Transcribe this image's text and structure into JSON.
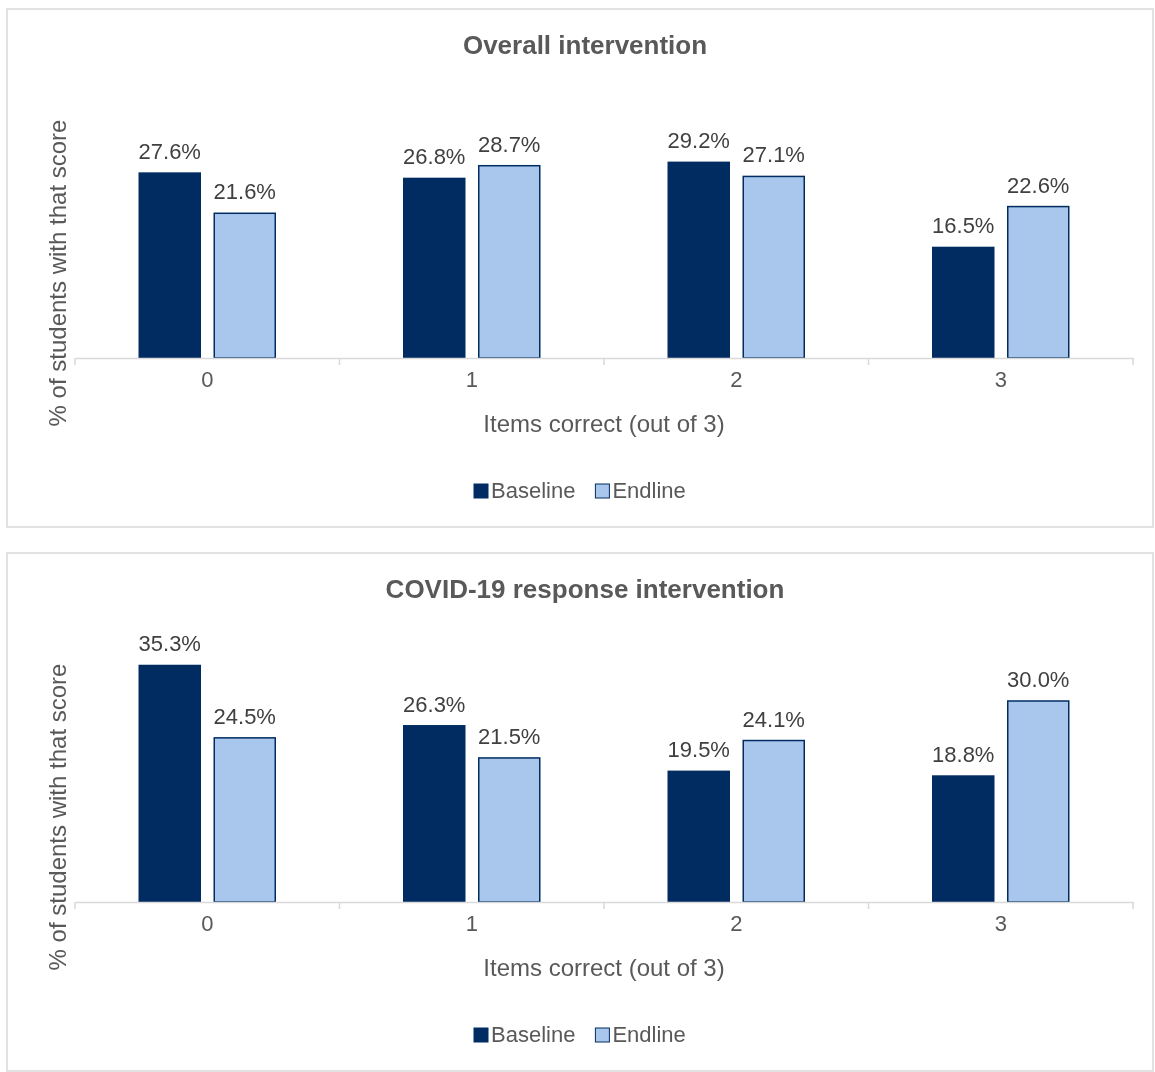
{
  "chart_data": [
    {
      "type": "bar",
      "title": "Overall intervention",
      "xlabel": "Items correct (out of 3)",
      "ylabel": "% of students with that score",
      "categories": [
        "0",
        "1",
        "2",
        "3"
      ],
      "series": [
        {
          "name": "Baseline",
          "color": "#002c62",
          "values": [
            27.6,
            26.8,
            29.2,
            16.5
          ],
          "value_labels": [
            "27.6%",
            "26.8%",
            "29.2%",
            "16.5%"
          ]
        },
        {
          "name": "Endline",
          "color": "#a9c7ec",
          "values": [
            21.6,
            28.7,
            27.1,
            22.6
          ],
          "value_labels": [
            "21.6%",
            "28.7%",
            "27.1%",
            "22.6%"
          ]
        }
      ],
      "legend": "bottom",
      "tick_labels": "x"
    },
    {
      "type": "bar",
      "title": "COVID-19 response intervention",
      "xlabel": "Items correct (out of 3)",
      "ylabel": "% of students with that score",
      "categories": [
        "0",
        "1",
        "2",
        "3"
      ],
      "series": [
        {
          "name": "Baseline",
          "color": "#002c62",
          "values": [
            35.3,
            26.3,
            19.5,
            18.8
          ],
          "value_labels": [
            "35.3%",
            "26.3%",
            "19.5%",
            "18.8%"
          ]
        },
        {
          "name": "Endline",
          "color": "#a9c7ec",
          "values": [
            24.5,
            21.5,
            24.1,
            30.0
          ],
          "value_labels": [
            "24.5%",
            "21.5%",
            "24.1%",
            "30.0%"
          ]
        }
      ],
      "legend": "bottom",
      "tick_labels": "x"
    }
  ]
}
